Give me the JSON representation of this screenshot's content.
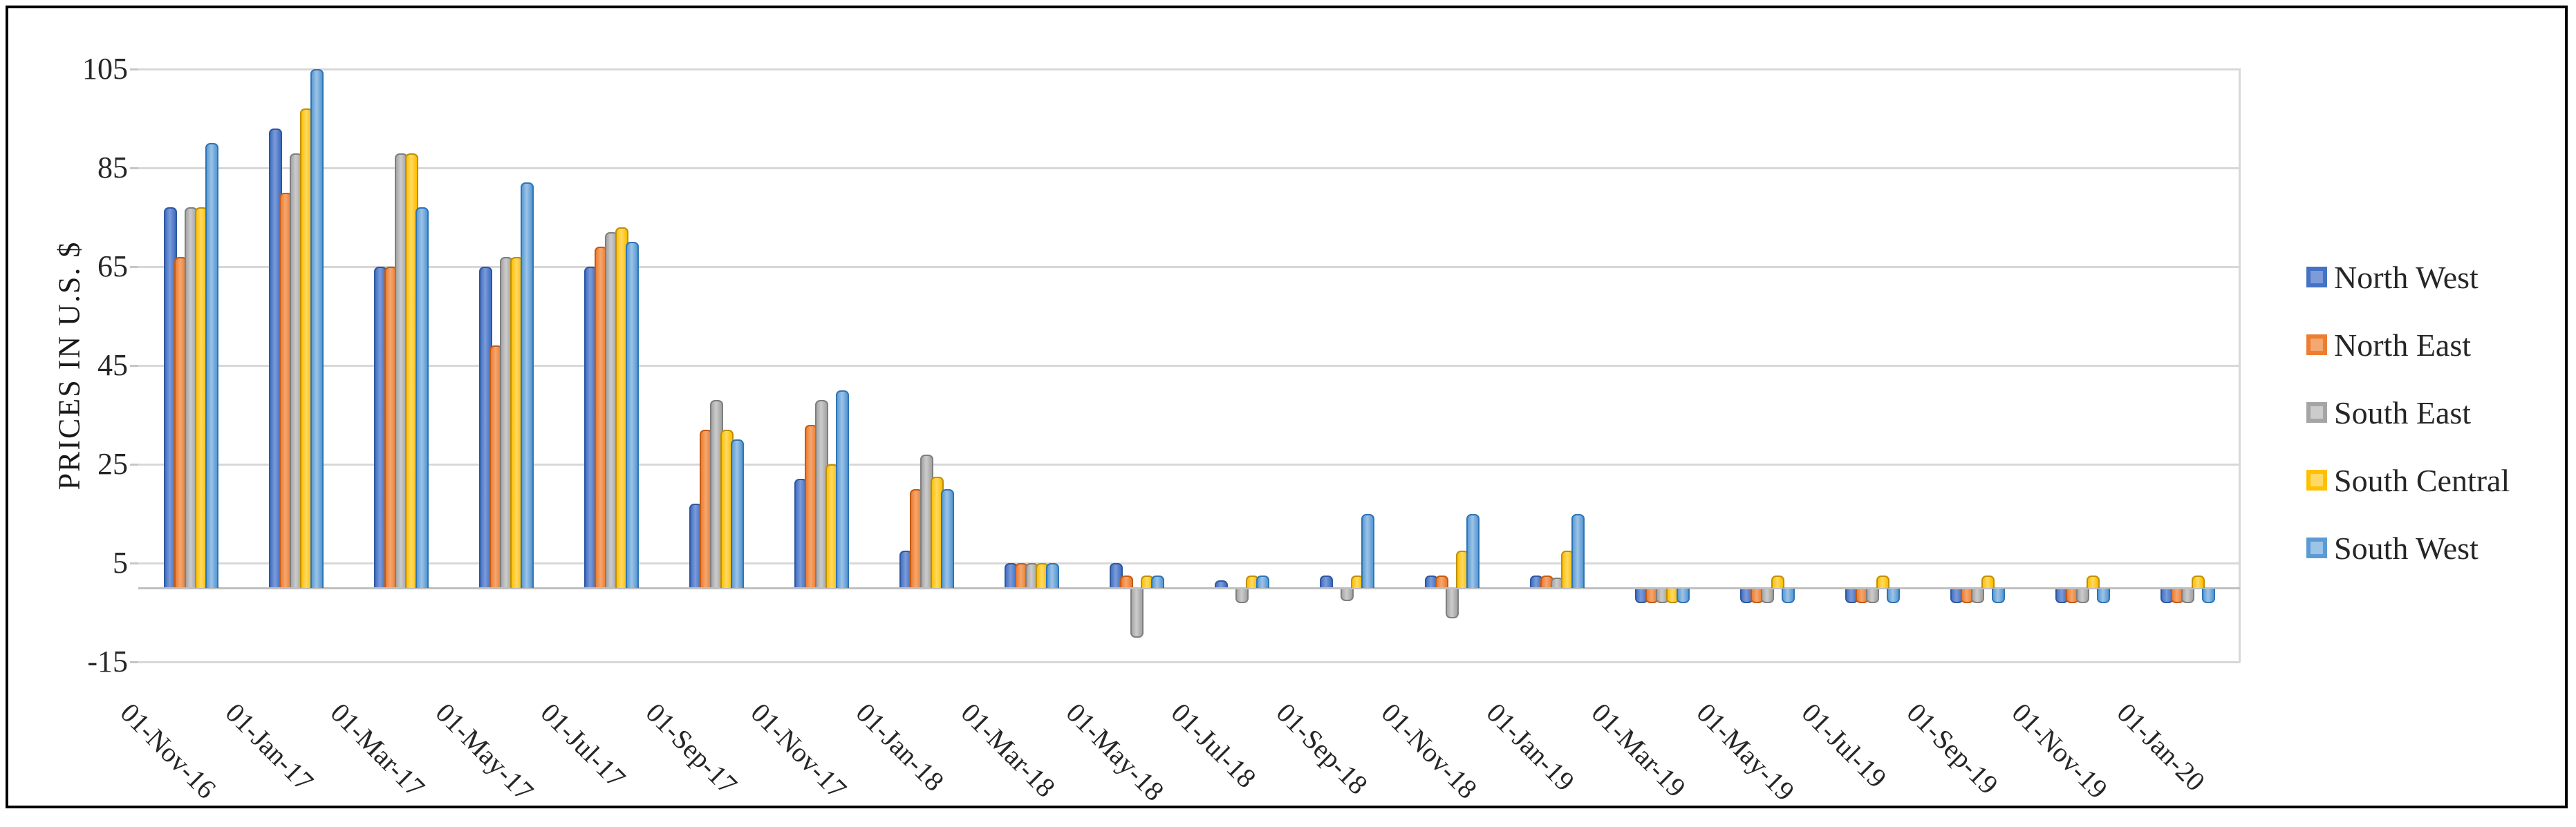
{
  "chart": {
    "y_axis_title": "PRICES IN U.S. $"
  },
  "chart_data": {
    "type": "bar",
    "title": "",
    "xlabel": "",
    "ylabel": "PRICES IN U.S. $",
    "ylim": [
      -15,
      105
    ],
    "y_tick_values": [
      105,
      85,
      65,
      45,
      25,
      5,
      -15
    ],
    "grid": true,
    "legend_position": "right",
    "categories": [
      "01-Nov-16",
      "01-Jan-17",
      "01-Mar-17",
      "01-May-17",
      "01-Jul-17",
      "01-Sep-17",
      "01-Nov-17",
      "01-Jan-18",
      "01-Mar-18",
      "01-May-18",
      "01-Jul-18",
      "01-Sep-18",
      "01-Nov-18",
      "01-Jan-19",
      "01-Mar-19",
      "01-May-19",
      "01-Jul-19",
      "01-Sep-19",
      "01-Nov-19",
      "01-Jan-20"
    ],
    "series": [
      {
        "name": "North West",
        "color": "#4472C4",
        "color_dark": "#2E579E",
        "color_light": "#7C9BD9",
        "values": [
          77,
          93,
          65,
          65,
          65,
          17,
          22,
          7.5,
          5,
          5,
          1.5,
          2.5,
          2.5,
          2.5,
          -3,
          -3,
          -3,
          -3,
          -3,
          -3
        ]
      },
      {
        "name": "North East",
        "color": "#ED7D31",
        "color_dark": "#C55A11",
        "color_light": "#F4A770",
        "values": [
          67,
          80,
          65,
          49,
          69,
          32,
          33,
          20,
          5,
          2.5,
          0,
          0,
          2.5,
          2.5,
          -3,
          -3,
          -3,
          -3,
          -3,
          -3
        ]
      },
      {
        "name": "South East",
        "color": "#A5A5A5",
        "color_dark": "#7F7F7F",
        "color_light": "#CCCCCC",
        "values": [
          77,
          88,
          88,
          67,
          72,
          38,
          38,
          27,
          5,
          -10,
          -3,
          -2.5,
          -6,
          2,
          -3,
          -3,
          -3,
          -3,
          -3,
          -3
        ]
      },
      {
        "name": "South Central",
        "color": "#FFC000",
        "color_dark": "#BF9000",
        "color_light": "#FFD966",
        "values": [
          77,
          97,
          88,
          67,
          73,
          32,
          25,
          22.5,
          5,
          2.5,
          2.5,
          2.5,
          7.5,
          7.5,
          -3,
          2.5,
          2.5,
          2.5,
          2.5,
          2.5
        ]
      },
      {
        "name": "South West",
        "color": "#5B9BD5",
        "color_dark": "#2E75B6",
        "color_light": "#9DC3E6",
        "values": [
          90,
          105,
          77,
          82,
          70,
          30,
          40,
          20,
          5,
          2.5,
          2.5,
          15,
          15,
          15,
          -3,
          -3,
          -3,
          -3,
          -3,
          -3
        ]
      }
    ]
  }
}
